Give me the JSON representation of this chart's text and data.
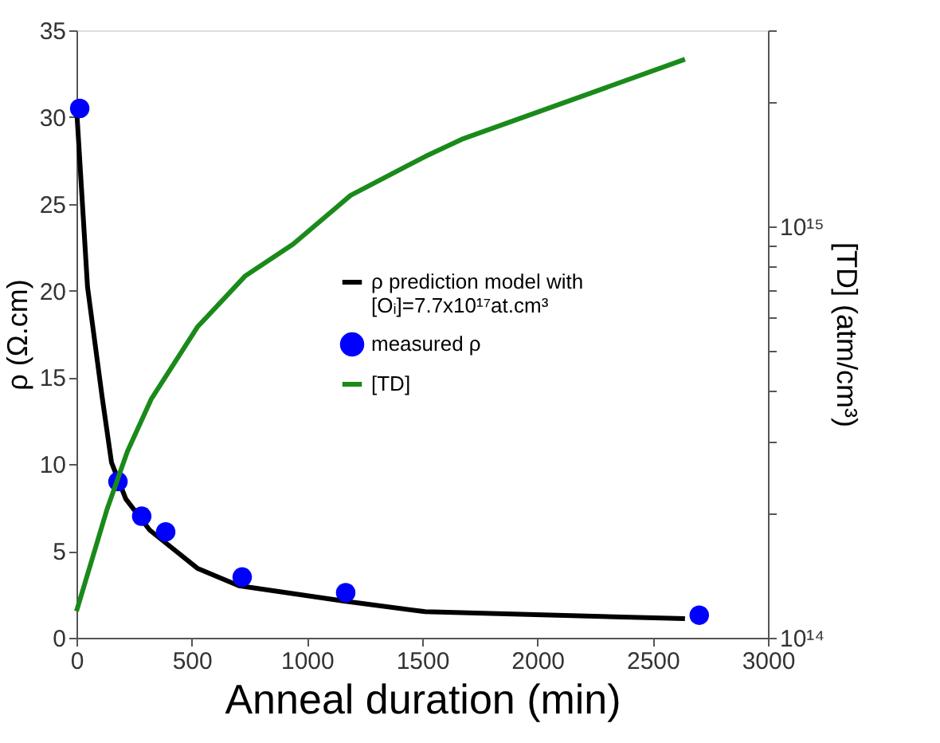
{
  "chart_data": {
    "type": "line",
    "xlabel": "Anneal duration (min)",
    "ylabel": "ρ (Ω.cm)",
    "y2label": "[TD] (atm/cm³)",
    "xlim": [
      0,
      3000
    ],
    "xticks": [
      0,
      500,
      1000,
      1500,
      2000,
      2500,
      3000
    ],
    "ylim": [
      0,
      35
    ],
    "yticks": [
      0,
      5,
      10,
      15,
      20,
      25,
      30,
      35
    ],
    "y2lim": [
      100000000000000.0,
      3000000000000000.0
    ],
    "log": "y2",
    "y2ticks": [
      {
        "value": 100000000000000.0,
        "label": "10¹⁴"
      },
      {
        "value": 200000000000000.0,
        "label": null
      },
      {
        "value": 300000000000000.0,
        "label": null
      },
      {
        "value": 400000000000000.0,
        "label": null
      },
      {
        "value": 500000000000000.0,
        "label": null
      },
      {
        "value": 600000000000000.0,
        "label": null
      },
      {
        "value": 700000000000000.0,
        "label": null
      },
      {
        "value": 800000000000000.0,
        "label": null
      },
      {
        "value": 900000000000000.0,
        "label": null
      },
      {
        "value": 1000000000000000.0,
        "label": "10¹⁵"
      },
      {
        "value": 2000000000000000.0,
        "label": null
      },
      {
        "value": 3000000000000000.0,
        "label": null
      }
    ],
    "grid": false,
    "legend": "right",
    "series": [
      {
        "name": "ρ prediction model with [Oᵢ]=7.7x10¹⁷at.cm³",
        "color": "#000000",
        "x": [
          0,
          48,
          110,
          152,
          214,
          318,
          525,
          705,
          1168,
          1513,
          2640
        ],
        "values": [
          30.6,
          20.2,
          14.0,
          10.1,
          8.0,
          6.2,
          4.0,
          3.0,
          2.1,
          1.5,
          1.1
        ]
      },
      {
        "name": "measured ρ",
        "type": "scatter",
        "marker": "circle",
        "color": "#0000ff",
        "x": [
          14,
          180,
          283,
          387,
          719,
          1168,
          2702
        ],
        "values": [
          30.5,
          9.0,
          7.0,
          6.1,
          3.5,
          2.6,
          1.3
        ]
      },
      {
        "name": "[TD]",
        "axis": "y2",
        "color": "#1a8a1a",
        "x": [
          0,
          131,
          221,
          325,
          525,
          733,
          940,
          1189,
          1513,
          1672,
          2640
        ],
        "values": [
          116000000000000.0,
          204000000000000.0,
          284000000000000.0,
          381000000000000.0,
          570000000000000.0,
          759000000000000.0,
          906000000000000.0,
          1190000000000000.0,
          1480000000000000.0,
          1630000000000000.0,
          2550000000000000.0
        ]
      }
    ]
  }
}
